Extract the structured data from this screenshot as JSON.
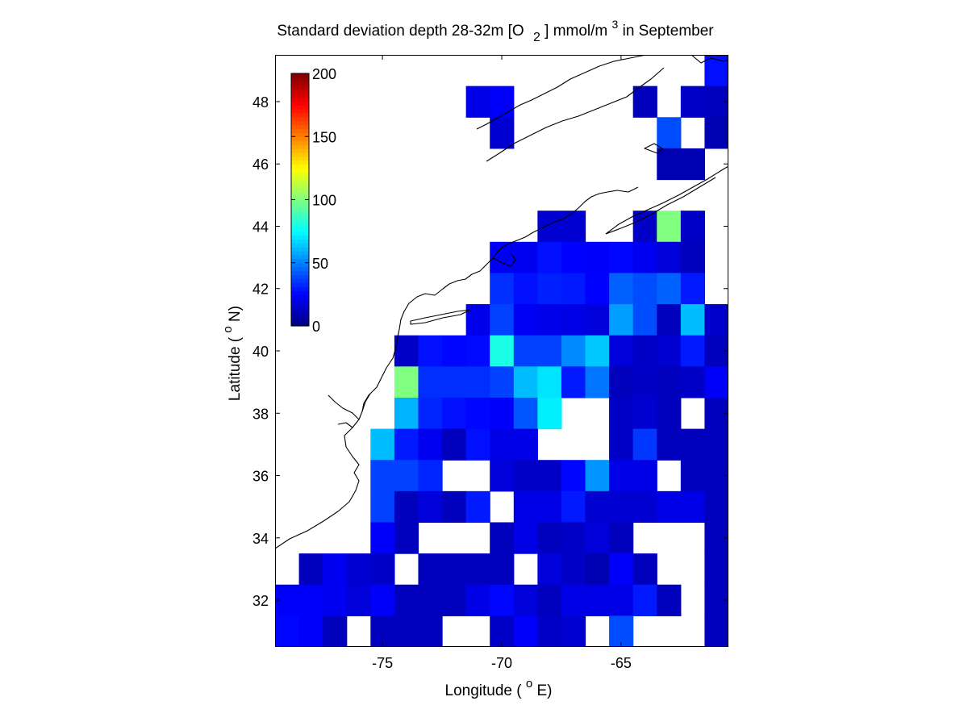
{
  "chart_data": {
    "type": "heatmap",
    "title": {
      "prefix": "Standard deviation depth 28-32m [O",
      "subscript": "2",
      "middle": "] mmol/m",
      "superscript": "3",
      "suffix": " in September"
    },
    "xlabel": {
      "before": "Longitude ( ",
      "degree": "o",
      "after": "E)"
    },
    "ylabel": {
      "before": "Latitude ( ",
      "degree": "o",
      "after": "N)"
    },
    "x_ticks": [
      "-75",
      "-70",
      "-65"
    ],
    "x_tick_values": [
      -75,
      -70,
      -65
    ],
    "y_ticks": [
      "32",
      "34",
      "36",
      "38",
      "40",
      "42",
      "44",
      "46",
      "48"
    ],
    "y_tick_values": [
      32,
      34,
      36,
      38,
      40,
      42,
      44,
      46,
      48
    ],
    "xlim": [
      -79.5,
      -60.5
    ],
    "ylim": [
      30.5,
      49.5
    ],
    "grid": false,
    "colormap": "jet",
    "colorbar": {
      "range": [
        0,
        200
      ],
      "tick_labels": [
        "0",
        "50",
        "100",
        "150",
        "200"
      ],
      "tick_values": [
        0,
        50,
        100,
        150,
        200
      ],
      "placement": "top-left inside axes"
    },
    "cell_size_deg": 1,
    "x_centers": [
      -79,
      -78,
      -77,
      -76,
      -75,
      -74,
      -73,
      -72,
      -71,
      -70,
      -69,
      -68,
      -67,
      -66,
      -65,
      -64,
      -63,
      -62,
      -61
    ],
    "y_centers": [
      49,
      48,
      47,
      46,
      45,
      44,
      43,
      42,
      41,
      40,
      39,
      38,
      37,
      36,
      35,
      34,
      33,
      32,
      31
    ],
    "values": [
      [
        null,
        null,
        null,
        null,
        null,
        null,
        null,
        null,
        null,
        null,
        null,
        null,
        null,
        null,
        null,
        null,
        null,
        null,
        28
      ],
      [
        null,
        null,
        null,
        null,
        null,
        null,
        null,
        null,
        20,
        24,
        null,
        null,
        null,
        null,
        null,
        12,
        null,
        14,
        12
      ],
      [
        null,
        null,
        null,
        null,
        null,
        null,
        null,
        null,
        null,
        16,
        null,
        null,
        null,
        null,
        null,
        null,
        40,
        null,
        10
      ],
      [
        null,
        null,
        null,
        null,
        null,
        null,
        null,
        null,
        null,
        null,
        null,
        null,
        null,
        null,
        null,
        null,
        10,
        10,
        null
      ],
      [
        null,
        null,
        null,
        null,
        null,
        null,
        null,
        null,
        null,
        null,
        null,
        null,
        null,
        null,
        null,
        null,
        null,
        null,
        null
      ],
      [
        null,
        null,
        null,
        null,
        null,
        null,
        null,
        null,
        null,
        null,
        null,
        16,
        16,
        null,
        null,
        14,
        100,
        14,
        null
      ],
      [
        null,
        null,
        null,
        null,
        null,
        null,
        null,
        null,
        null,
        24,
        22,
        28,
        25,
        24,
        26,
        22,
        18,
        12,
        null
      ],
      [
        null,
        null,
        null,
        null,
        null,
        null,
        null,
        null,
        null,
        34,
        28,
        31,
        30,
        25,
        44,
        40,
        44,
        30,
        null
      ],
      [
        null,
        null,
        null,
        null,
        null,
        null,
        null,
        null,
        21,
        38,
        23,
        21,
        20,
        18,
        56,
        40,
        12,
        62,
        15
      ],
      [
        null,
        null,
        null,
        null,
        null,
        14,
        28,
        26,
        27,
        80,
        38,
        38,
        52,
        64,
        18,
        14,
        16,
        30,
        12
      ],
      [
        null,
        null,
        null,
        null,
        null,
        100,
        34,
        34,
        34,
        38,
        62,
        70,
        30,
        48,
        12,
        14,
        12,
        14,
        24
      ],
      [
        null,
        null,
        null,
        null,
        null,
        60,
        32,
        28,
        26,
        24,
        42,
        72,
        null,
        null,
        14,
        16,
        12,
        null,
        12
      ],
      [
        null,
        null,
        null,
        null,
        62,
        30,
        22,
        12,
        28,
        20,
        20,
        null,
        null,
        null,
        14,
        36,
        12,
        12,
        12
      ],
      [
        null,
        null,
        null,
        null,
        38,
        38,
        32,
        null,
        null,
        18,
        14,
        14,
        26,
        54,
        20,
        20,
        null,
        12,
        12
      ],
      [
        null,
        null,
        null,
        null,
        38,
        12,
        18,
        12,
        30,
        null,
        20,
        20,
        30,
        16,
        16,
        16,
        20,
        20,
        12
      ],
      [
        null,
        null,
        null,
        null,
        24,
        12,
        null,
        null,
        null,
        12,
        20,
        12,
        14,
        18,
        12,
        null,
        null,
        null,
        12
      ],
      [
        null,
        12,
        22,
        16,
        14,
        null,
        12,
        12,
        12,
        12,
        null,
        18,
        14,
        10,
        24,
        12,
        null,
        null,
        12
      ],
      [
        24,
        24,
        22,
        18,
        24,
        12,
        12,
        12,
        20,
        26,
        18,
        12,
        20,
        20,
        20,
        30,
        12,
        null,
        12
      ],
      [
        26,
        24,
        12,
        null,
        12,
        12,
        12,
        null,
        null,
        14,
        24,
        14,
        16,
        null,
        40,
        null,
        null,
        null,
        12
      ]
    ]
  }
}
